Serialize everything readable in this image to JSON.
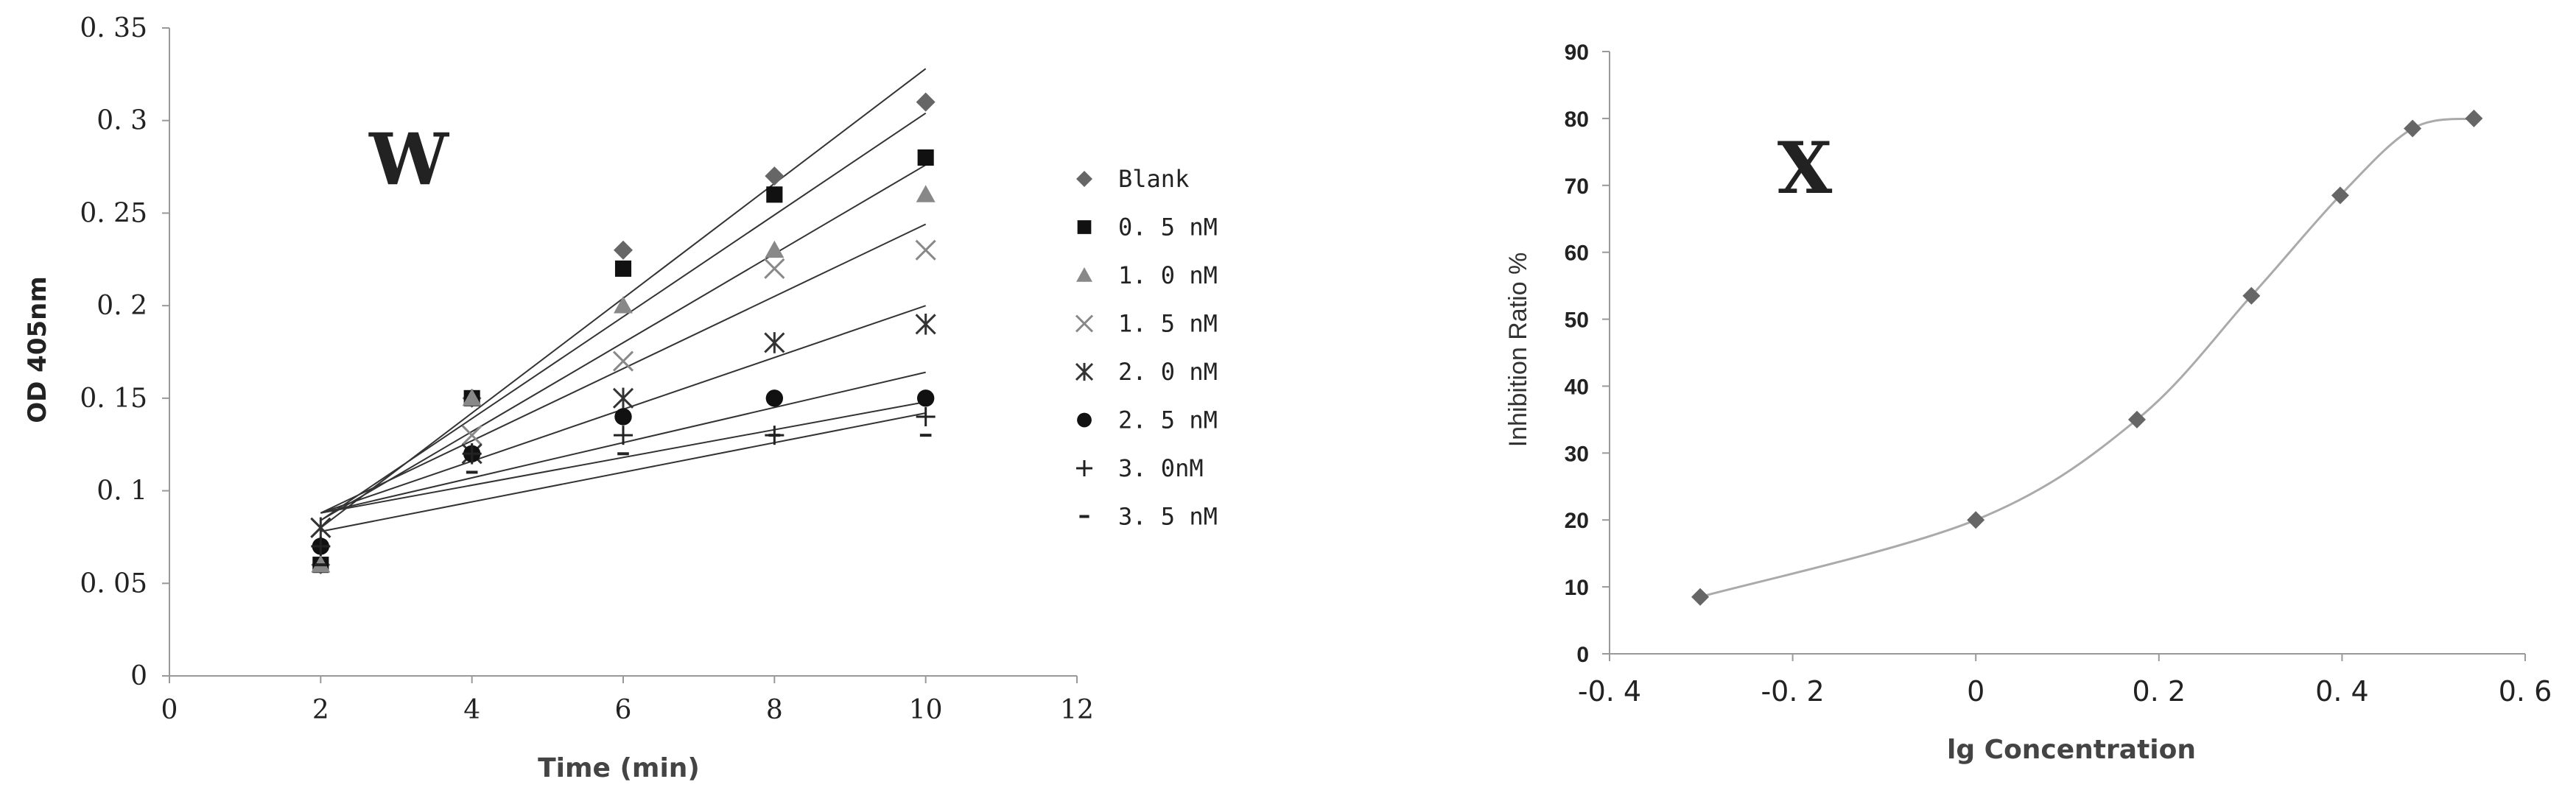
{
  "chart_data": [
    {
      "type": "scatter",
      "panel_label": "W",
      "xlabel": "Time (min)",
      "ylabel": "OD 405nm",
      "xlim": [
        0,
        12
      ],
      "ylim": [
        0,
        0.35
      ],
      "x_ticks": [
        0,
        2,
        4,
        6,
        8,
        10,
        12
      ],
      "y_ticks": [
        0,
        0.05,
        0.1,
        0.15,
        0.2,
        0.25,
        0.3,
        0.35
      ],
      "x_tick_labels": [
        "0",
        "2",
        "4",
        "6",
        "8",
        "10",
        "12"
      ],
      "y_tick_labels": [
        "0",
        "0. 05",
        "0. 1",
        "0. 15",
        "0. 2",
        "0. 25",
        "0. 3",
        "0. 35"
      ],
      "legend_position": "right",
      "trendlines": true,
      "series": [
        {
          "name": "Blank",
          "marker": "diamond",
          "x": [
            2,
            4,
            6,
            8,
            10
          ],
          "y": [
            0.06,
            0.15,
            0.23,
            0.27,
            0.31
          ]
        },
        {
          "name": "0. 5 nM",
          "marker": "square",
          "x": [
            2,
            4,
            6,
            8,
            10
          ],
          "y": [
            0.06,
            0.15,
            0.22,
            0.26,
            0.28
          ]
        },
        {
          "name": "1. 0 nM",
          "marker": "triangle",
          "x": [
            2,
            4,
            6,
            8,
            10
          ],
          "y": [
            0.06,
            0.15,
            0.2,
            0.23,
            0.26
          ]
        },
        {
          "name": "1. 5 nM",
          "marker": "x",
          "x": [
            2,
            4,
            6,
            8,
            10
          ],
          "y": [
            0.08,
            0.13,
            0.17,
            0.22,
            0.23
          ]
        },
        {
          "name": "2. 0 nM",
          "marker": "star",
          "x": [
            2,
            4,
            6,
            8,
            10
          ],
          "y": [
            0.08,
            0.12,
            0.15,
            0.18,
            0.19
          ]
        },
        {
          "name": "2. 5 nM",
          "marker": "circle",
          "x": [
            2,
            4,
            6,
            8,
            10
          ],
          "y": [
            0.07,
            0.12,
            0.14,
            0.15,
            0.15
          ]
        },
        {
          "name": "3. 0nM",
          "marker": "plus",
          "x": [
            2,
            4,
            6,
            8,
            10
          ],
          "y": [
            0.07,
            0.12,
            0.13,
            0.13,
            0.14
          ]
        },
        {
          "name": "3. 5 nM",
          "marker": "dash",
          "x": [
            2,
            4,
            6,
            8,
            10
          ],
          "y": [
            0.06,
            0.11,
            0.12,
            0.13,
            0.13
          ]
        }
      ]
    },
    {
      "type": "line",
      "panel_label": "X",
      "xlabel": "lg Concentration",
      "ylabel": "Inhibition Ratio %",
      "xlim": [
        -0.4,
        0.6
      ],
      "ylim": [
        0,
        90
      ],
      "x_ticks": [
        -0.4,
        -0.2,
        0,
        0.2,
        0.4,
        0.6
      ],
      "y_ticks": [
        0,
        10,
        20,
        30,
        40,
        50,
        60,
        70,
        80,
        90
      ],
      "x_tick_labels": [
        "-0. 4",
        "-0. 2",
        "0",
        "0. 2",
        "0. 4",
        "0. 6"
      ],
      "y_tick_labels": [
        "0",
        "10",
        "20",
        "30",
        "40",
        "50",
        "60",
        "70",
        "80",
        "90"
      ],
      "series": [
        {
          "name": "",
          "marker": "diamond",
          "x": [
            -0.301,
            0,
            0.176,
            0.301,
            0.398,
            0.477,
            0.544
          ],
          "y": [
            8.5,
            20,
            35,
            53.5,
            68.5,
            78.5,
            80
          ]
        }
      ]
    }
  ]
}
